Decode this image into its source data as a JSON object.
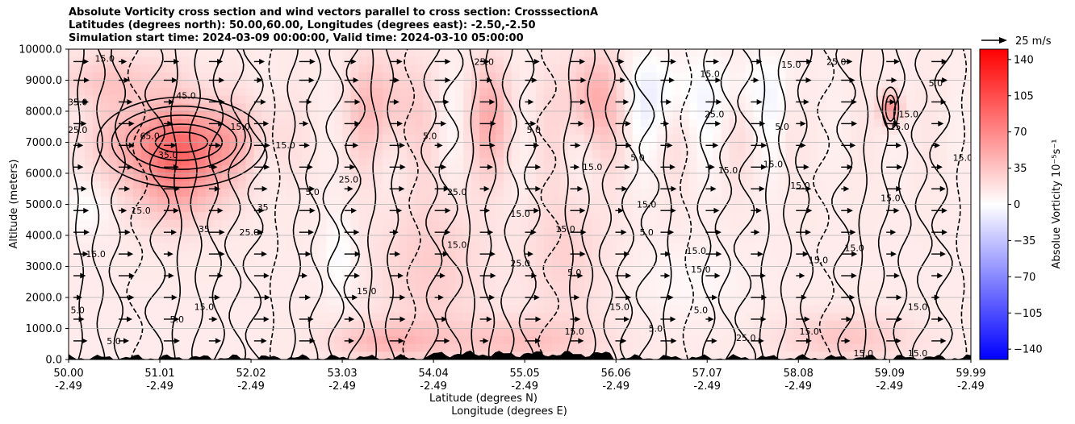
{
  "chart_data": {
    "type": "heatmap",
    "title_lines": [
      "Absolute Vorticity cross section and wind vectors parallel to cross section: CrosssectionA",
      "Latitudes (degrees north): 50.00,60.00, Longitudes (degrees east): -2.50,-2.50",
      "Simulation start time: 2024-03-09 00:00:00, Valid time: 2024-03-10 05:00:00"
    ],
    "ylabel": "Altitude (meters)",
    "xlabel_lines": [
      "Latitude (degrees N)",
      "Longitude (degrees E)"
    ],
    "x_ticks": [
      {
        "lat": 50.0,
        "lat_label": "50.00",
        "lon_label": "-2.49"
      },
      {
        "lat": 51.01,
        "lat_label": "51.01",
        "lon_label": "-2.49"
      },
      {
        "lat": 52.02,
        "lat_label": "52.02",
        "lon_label": "-2.49"
      },
      {
        "lat": 53.03,
        "lat_label": "53.03",
        "lon_label": "-2.49"
      },
      {
        "lat": 54.04,
        "lat_label": "54.04",
        "lon_label": "-2.49"
      },
      {
        "lat": 55.05,
        "lat_label": "55.05",
        "lon_label": "-2.49"
      },
      {
        "lat": 56.06,
        "lat_label": "56.06",
        "lon_label": "-2.49"
      },
      {
        "lat": 57.07,
        "lat_label": "57.07",
        "lon_label": "-2.49"
      },
      {
        "lat": 58.08,
        "lat_label": "58.08",
        "lon_label": "-2.49"
      },
      {
        "lat": 59.09,
        "lat_label": "59.09",
        "lon_label": "-2.49"
      },
      {
        "lat": 59.99,
        "lat_label": "59.99",
        "lon_label": "-2.49"
      }
    ],
    "y_ticks": [
      0,
      1000,
      2000,
      3000,
      4000,
      5000,
      6000,
      7000,
      8000,
      9000,
      10000
    ],
    "y_tick_labels": [
      "0.0",
      "1000.0",
      "2000.0",
      "3000.0",
      "4000.0",
      "5000.0",
      "6000.0",
      "7000.0",
      "8000.0",
      "9000.0",
      "10000.0"
    ],
    "xlim": [
      50.0,
      59.99
    ],
    "ylim": [
      0,
      10000
    ],
    "grid": "horizontal",
    "colorbar": {
      "label": "Absolue Vorticity 10⁻⁵s⁻¹",
      "range": [
        -150,
        150
      ],
      "ticks": [
        140,
        105,
        70,
        35,
        0,
        -35,
        -70,
        -105,
        -140
      ],
      "tick_labels": [
        "140",
        "105",
        "70",
        "35",
        "0",
        "−35",
        "−70",
        "−105",
        "−140"
      ],
      "colormap": "bwr",
      "colors": {
        "low": "#0000ff",
        "mid": "#ffffff",
        "high": "#ff0000"
      }
    },
    "quiver_key": {
      "label": "25 m/s",
      "speed": 25
    },
    "wind_rows": [
      9600,
      9000,
      8300,
      7600,
      6900,
      6200,
      5500,
      4800,
      4100,
      3400,
      2700,
      2000,
      1300,
      600
    ],
    "wind_cols": [
      50.0,
      50.5,
      51.0,
      51.5,
      52.0,
      52.5,
      53.0,
      53.5,
      54.0,
      54.5,
      55.0,
      55.5,
      56.0,
      56.5,
      57.0,
      57.5,
      58.0,
      58.5,
      59.0,
      59.5
    ],
    "blobs": [
      {
        "lat": 51.25,
        "alt": 7000,
        "slat": 0.55,
        "salt": 900,
        "value": 65
      },
      {
        "lat": 51.2,
        "alt": 5600,
        "slat": 0.35,
        "salt": 900,
        "value": 35
      },
      {
        "lat": 53.5,
        "alt": 8200,
        "slat": 0.25,
        "salt": 1100,
        "value": 30
      },
      {
        "lat": 54.7,
        "alt": 7800,
        "slat": 0.2,
        "salt": 1200,
        "value": 30
      },
      {
        "lat": 55.8,
        "alt": 8400,
        "slat": 0.2,
        "salt": 1000,
        "value": 40
      },
      {
        "lat": 59.1,
        "alt": 8100,
        "slat": 0.08,
        "salt": 350,
        "value": 60
      },
      {
        "lat": 56.6,
        "alt": 8600,
        "slat": 0.35,
        "salt": 900,
        "value": -18
      },
      {
        "lat": 57.6,
        "alt": 8700,
        "slat": 0.3,
        "salt": 800,
        "value": -12
      },
      {
        "lat": 50.2,
        "alt": 4900,
        "slat": 0.2,
        "salt": 600,
        "value": -12
      },
      {
        "lat": 52.15,
        "alt": 6400,
        "slat": 0.12,
        "salt": 500,
        "value": -10
      },
      {
        "lat": 53.0,
        "alt": 3300,
        "slat": 0.12,
        "salt": 900,
        "value": -15
      },
      {
        "lat": 56.9,
        "alt": 2500,
        "slat": 0.4,
        "salt": 800,
        "value": -8
      },
      {
        "lat": 55.0,
        "alt": 600,
        "slat": 0.6,
        "salt": 500,
        "value": 25
      },
      {
        "lat": 53.5,
        "alt": 600,
        "slat": 0.4,
        "salt": 400,
        "value": 30
      },
      {
        "lat": 58.6,
        "alt": 700,
        "slat": 0.5,
        "salt": 500,
        "value": 22
      },
      {
        "lat": 54.0,
        "alt": 3000,
        "slat": 0.4,
        "salt": 1800,
        "value": 18
      },
      {
        "lat": 55.5,
        "alt": 3500,
        "slat": 0.3,
        "salt": 1500,
        "value": 15
      },
      {
        "lat": 50.5,
        "alt": 9000,
        "slat": 0.5,
        "salt": 600,
        "value": 20
      }
    ],
    "background_value": 12,
    "contour_labels": [
      {
        "text": "15.0",
        "lat": 50.4,
        "alt": 9600
      },
      {
        "text": "35.0",
        "lat": 50.1,
        "alt": 8200
      },
      {
        "text": "25.0",
        "lat": 50.1,
        "alt": 7300
      },
      {
        "text": "65.0",
        "lat": 50.9,
        "alt": 7100
      },
      {
        "text": "45.0",
        "lat": 51.3,
        "alt": 8400
      },
      {
        "text": "35.0",
        "lat": 51.1,
        "alt": 6500
      },
      {
        "text": "15.0",
        "lat": 51.9,
        "alt": 7400
      },
      {
        "text": "15.0",
        "lat": 50.8,
        "alt": 4700
      },
      {
        "text": "35",
        "lat": 51.5,
        "alt": 4100
      },
      {
        "text": "35",
        "lat": 52.15,
        "alt": 4800
      },
      {
        "text": "5.0",
        "lat": 52.7,
        "alt": 5300
      },
      {
        "text": "25.0",
        "lat": 53.1,
        "alt": 5700
      },
      {
        "text": "15.0",
        "lat": 50.3,
        "alt": 3300
      },
      {
        "text": "25.0",
        "lat": 52.0,
        "alt": 4000
      },
      {
        "text": "5.0",
        "lat": 50.1,
        "alt": 1500
      },
      {
        "text": "5.0",
        "lat": 50.5,
        "alt": 500
      },
      {
        "text": "5.0",
        "lat": 51.2,
        "alt": 1200
      },
      {
        "text": "15.0",
        "lat": 51.5,
        "alt": 1600
      },
      {
        "text": "15.0",
        "lat": 53.3,
        "alt": 2100
      },
      {
        "text": "15.0",
        "lat": 54.3,
        "alt": 3600
      },
      {
        "text": "25.0",
        "lat": 54.3,
        "alt": 5300
      },
      {
        "text": "15.0",
        "lat": 55.0,
        "alt": 4600
      },
      {
        "text": "25.0",
        "lat": 55.0,
        "alt": 3000
      },
      {
        "text": "5.0",
        "lat": 55.15,
        "alt": 7300
      },
      {
        "text": "15.0",
        "lat": 55.5,
        "alt": 4100
      },
      {
        "text": "15.0",
        "lat": 56.4,
        "alt": 4900
      },
      {
        "text": "15.0",
        "lat": 56.95,
        "alt": 3400
      },
      {
        "text": "5.0",
        "lat": 56.4,
        "alt": 4000
      },
      {
        "text": "5.0",
        "lat": 55.6,
        "alt": 2700
      },
      {
        "text": "15.0",
        "lat": 56.1,
        "alt": 1600
      },
      {
        "text": "15.0",
        "lat": 55.6,
        "alt": 800
      },
      {
        "text": "15.0",
        "lat": 57.0,
        "alt": 2800
      },
      {
        "text": "5.0",
        "lat": 57.0,
        "alt": 1500
      },
      {
        "text": "15.0",
        "lat": 57.3,
        "alt": 6000
      },
      {
        "text": "25.0",
        "lat": 57.15,
        "alt": 7800
      },
      {
        "text": "15.0",
        "lat": 57.8,
        "alt": 6200
      },
      {
        "text": "5.0",
        "lat": 57.9,
        "alt": 7400
      },
      {
        "text": "15.0",
        "lat": 58.3,
        "alt": 3100
      },
      {
        "text": "15.0",
        "lat": 58.1,
        "alt": 5500
      },
      {
        "text": "15.0",
        "lat": 58.7,
        "alt": 3500
      },
      {
        "text": "15.0",
        "lat": 59.3,
        "alt": 7800
      },
      {
        "text": "15.0",
        "lat": 59.2,
        "alt": 7400
      },
      {
        "text": "15.0",
        "lat": 59.1,
        "alt": 5100
      },
      {
        "text": "15.0",
        "lat": 58.2,
        "alt": 800
      },
      {
        "text": "15.0",
        "lat": 59.4,
        "alt": 1600
      },
      {
        "text": "5.0",
        "lat": 59.6,
        "alt": 8800
      },
      {
        "text": "15.0",
        "lat": 59.9,
        "alt": 6400
      },
      {
        "text": "15.0",
        "lat": 58.8,
        "alt": 100
      },
      {
        "text": "15.0",
        "lat": 59.4,
        "alt": 100
      },
      {
        "text": "25.0",
        "lat": 57.5,
        "alt": 600
      },
      {
        "text": "5.0",
        "lat": 56.5,
        "alt": 900
      },
      {
        "text": "15.0",
        "lat": 58.0,
        "alt": 9400
      },
      {
        "text": "25.0",
        "lat": 58.5,
        "alt": 9500
      },
      {
        "text": "15.0",
        "lat": 57.1,
        "alt": 9100
      },
      {
        "text": "15.0",
        "lat": 52.4,
        "alt": 6800
      },
      {
        "text": "5.0",
        "lat": 54.0,
        "alt": 7100
      },
      {
        "text": "25.0",
        "lat": 54.6,
        "alt": 9500
      },
      {
        "text": "15.0",
        "lat": 55.8,
        "alt": 6100
      },
      {
        "text": "5.0",
        "lat": 56.3,
        "alt": 6400
      }
    ]
  }
}
